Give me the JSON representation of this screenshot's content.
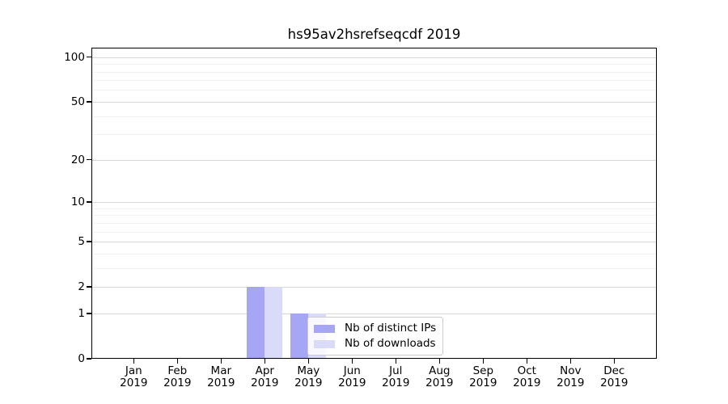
{
  "chart_data": {
    "type": "bar",
    "title": "hs95av2hsrefseqcdf 2019",
    "categories": [
      "Jan",
      "Feb",
      "Mar",
      "Apr",
      "May",
      "Jun",
      "Jul",
      "Aug",
      "Sep",
      "Oct",
      "Nov",
      "Dec"
    ],
    "category_year": "2019",
    "series": [
      {
        "name": "Nb of distinct IPs",
        "color": "#a6a6f4",
        "values": [
          0,
          0,
          0,
          2,
          1,
          0,
          0,
          0,
          0,
          0,
          0,
          0
        ]
      },
      {
        "name": "Nb of downloads",
        "color": "#dadaf9",
        "values": [
          0,
          0,
          0,
          2,
          1,
          0,
          0,
          0,
          0,
          0,
          0,
          0
        ]
      }
    ],
    "y_axis": {
      "scale": "log1p",
      "ticks": [
        0,
        1,
        2,
        5,
        10,
        20,
        50,
        100
      ],
      "minor_gridlines": [
        3,
        4,
        6,
        7,
        8,
        9,
        30,
        40,
        60,
        70,
        80,
        90
      ],
      "ymin": 0,
      "ymax": 115.7
    },
    "x_axis": {
      "unit": "month",
      "year": "2019"
    },
    "grid": {
      "major_color": "#d7d7d7",
      "minor_color": "#f1f1f1"
    },
    "legend": {
      "position": "lower center-right",
      "background": "rgba(255,255,255,0.8)",
      "border_color": "#cccccc",
      "entries": [
        "Nb of distinct IPs",
        "Nb of downloads"
      ]
    },
    "spine_color": "#000000"
  }
}
